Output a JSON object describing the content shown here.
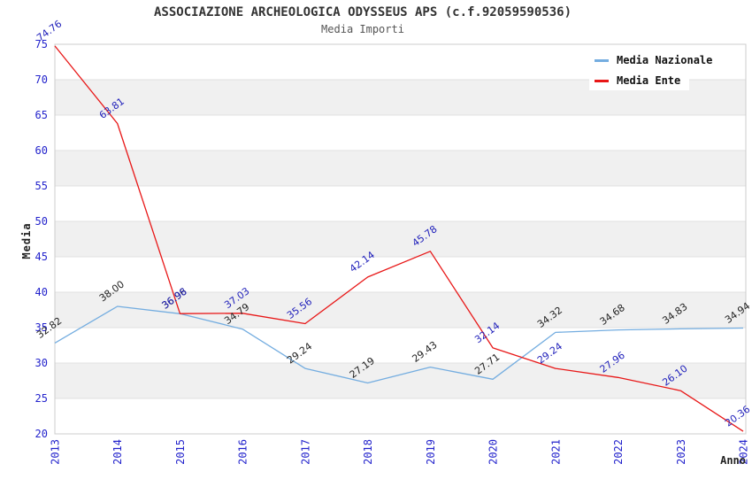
{
  "header": {
    "title": "ASSOCIAZIONE ARCHEOLOGICA ODYSSEUS APS (c.f.92059590536)",
    "subtitle": "Media Importi"
  },
  "chart_data": {
    "type": "line",
    "title": "ASSOCIAZIONE ARCHEOLOGICA ODYSSEUS APS (c.f.92059590536)",
    "subtitle": "Media Importi",
    "xlabel": "Anno",
    "ylabel": "Media",
    "x": [
      "2013",
      "2014",
      "2015",
      "2016",
      "2017",
      "2018",
      "2019",
      "2020",
      "2021",
      "2022",
      "2023",
      "2024"
    ],
    "ylim": [
      20,
      75
    ],
    "ytick_step": 5,
    "yticks": [
      "20",
      "25",
      "30",
      "35",
      "40",
      "45",
      "50",
      "55",
      "60",
      "65",
      "70",
      "75"
    ],
    "grid": "horizontal-with-alternating-bands",
    "legend_position": "top-right",
    "series": [
      {
        "name": "Media Nazionale",
        "color": "#74ADE0",
        "label_color": "#222222",
        "values": [
          32.82,
          38.0,
          36.96,
          34.79,
          29.24,
          27.19,
          29.43,
          27.71,
          34.32,
          34.68,
          34.83,
          34.94
        ],
        "labels": [
          "32.82",
          "38.00",
          "36.96",
          "34.79",
          "29.24",
          "27.19",
          "29.43",
          "27.71",
          "34.32",
          "34.68",
          "34.83",
          "34.94"
        ]
      },
      {
        "name": "Media Ente",
        "color": "#E81717",
        "label_color": "#2222BB",
        "values": [
          74.76,
          63.81,
          36.98,
          37.03,
          35.56,
          42.14,
          45.78,
          32.14,
          29.24,
          27.96,
          26.1,
          20.36
        ],
        "labels": [
          "74.76",
          "63.81",
          "36.98",
          "37.03",
          "35.56",
          "42.14",
          "45.78",
          "32.14",
          "29.24",
          "27.96",
          "26.10",
          "20.36"
        ]
      }
    ],
    "colors": {
      "tick_label": "#2323CC",
      "band_fill": "#F0F0F0",
      "gridline": "#E0E0E0",
      "plot_border": "#CCCCCC"
    }
  }
}
